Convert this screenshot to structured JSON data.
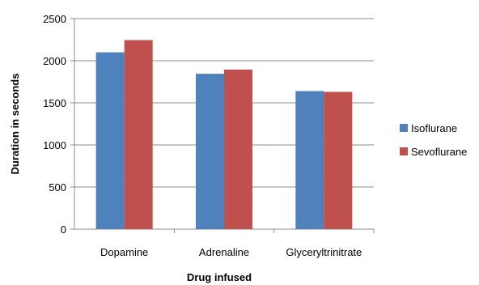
{
  "chart_data": {
    "type": "bar",
    "title": "",
    "xlabel": "Drug infused",
    "ylabel": "Duration in seconds",
    "categories": [
      "Dopamine",
      "Adrenaline",
      "Glyceryltrinitrate"
    ],
    "series": [
      {
        "name": "Isoflurane",
        "values": [
          2100,
          1845,
          1640
        ],
        "color": "#4F81BD"
      },
      {
        "name": "Sevoflurane",
        "values": [
          2245,
          1895,
          1630
        ],
        "color": "#C0504D"
      }
    ],
    "ylim": [
      0,
      2500
    ],
    "yticks": [
      0,
      500,
      1000,
      1500,
      2000,
      2500
    ],
    "grid": true,
    "legend": "right"
  }
}
